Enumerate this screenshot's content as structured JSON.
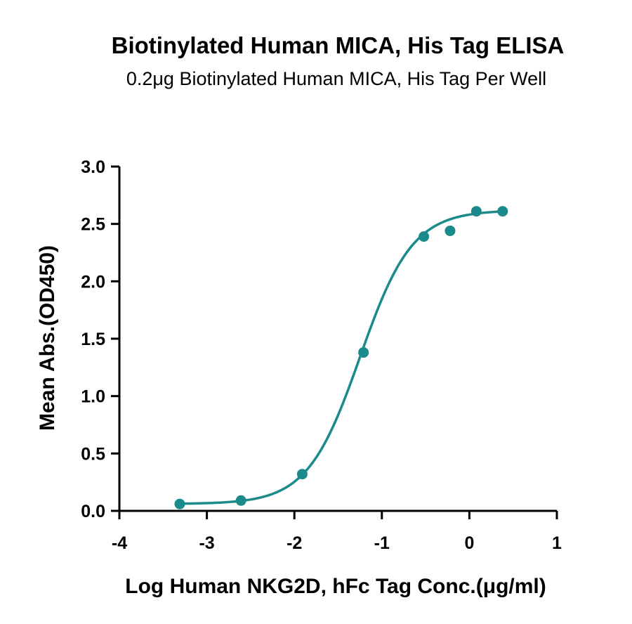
{
  "chart_data": {
    "type": "scatter",
    "title": "Biotinylated Human MICA, His Tag ELISA",
    "subtitle": "0.2μg Biotinylated Human MICA, His Tag Per Well",
    "xlabel": "Log Human NKG2D, hFc Tag Conc.(μg/ml)",
    "ylabel": "Mean Abs.(OD450)",
    "xlim": [
      -4,
      1
    ],
    "ylim": [
      0,
      3.0
    ],
    "x_ticks": [
      "-4",
      "-3",
      "-2",
      "-1",
      "0",
      "1"
    ],
    "y_ticks": [
      "0.0",
      "0.5",
      "1.0",
      "1.5",
      "2.0",
      "2.5",
      "3.0"
    ],
    "grid": false,
    "series": [
      {
        "points": [
          {
            "x": -3.31,
            "y": 0.06
          },
          {
            "x": -2.61,
            "y": 0.09
          },
          {
            "x": -1.91,
            "y": 0.32
          },
          {
            "x": -1.21,
            "y": 1.38
          },
          {
            "x": -0.52,
            "y": 2.39
          },
          {
            "x": -0.22,
            "y": 2.44
          },
          {
            "x": 0.08,
            "y": 2.61
          },
          {
            "x": 0.38,
            "y": 2.61
          }
        ],
        "fit_curve": {
          "model": "4PL",
          "bottom": 0.06,
          "top": 2.62,
          "log_ec50": -1.25,
          "hill_slope": 1.45,
          "x_range": [
            -3.31,
            0.38
          ]
        },
        "color": "#1a8a8a"
      }
    ]
  }
}
